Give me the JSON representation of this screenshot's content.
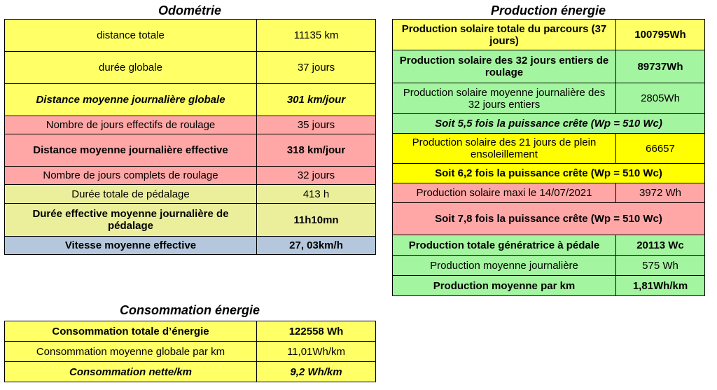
{
  "odometrie": {
    "title": "Odométrie",
    "rows": [
      {
        "label": "distance totale",
        "value": "11135 km"
      },
      {
        "label": "durée globale",
        "value": "37 jours"
      },
      {
        "label": "Distance moyenne journalière globale",
        "value": "301 km/jour"
      },
      {
        "label": "Nombre de jours effectifs  de roulage",
        "value": "35 jours"
      },
      {
        "label": "Distance moyenne journalière effective",
        "value": "318 km/jour"
      },
      {
        "label": "Nombre de jours complets de roulage",
        "value": "32 jours"
      },
      {
        "label": "Durée totale de pédalage",
        "value": "413 h"
      },
      {
        "label": "Durée effective moyenne journalière de pédalage",
        "value": "11h10mn"
      },
      {
        "label": "Vitesse moyenne effective",
        "value": "27, 03km/h"
      }
    ]
  },
  "production": {
    "title": "Production énergie",
    "rows": [
      {
        "label": "Production solaire totale du parcours (37 jours)",
        "value": "100795Wh"
      },
      {
        "label": "Production solaire des 32 jours entiers de roulage",
        "value": "89737Wh"
      },
      {
        "label": "Production solaire moyenne journalière des 32 jours entiers",
        "value": "2805Wh"
      },
      {
        "label": "Soit 5,5 fois la puissance crête (Wp = 510 Wc)"
      },
      {
        "label": "Production solaire  des 21 jours de plein ensoleillement",
        "value": "66657"
      },
      {
        "label": "Soit 6,2 fois la puissance crête (Wp = 510 Wc)"
      },
      {
        "label": "Production solaire maxi le 14/07/2021",
        "value": "3972 Wh"
      },
      {
        "label": "Soit 7,8 fois la puissance crête (Wp = 510 Wc)"
      },
      {
        "label": "Production totale génératrice à pédale",
        "value": "20113 Wc"
      },
      {
        "label": "Production moyenne journalière",
        "value": "575 Wh"
      },
      {
        "label": "Production moyenne  par km",
        "value": "1,81Wh/km"
      }
    ]
  },
  "consommation": {
    "title": "Consommation énergie",
    "rows": [
      {
        "label": "Consommation totale d’énergie",
        "value": "122558 Wh"
      },
      {
        "label": "Consommation moyenne globale par km",
        "value": "11,01Wh/km"
      },
      {
        "label": "Consommation nette/km",
        "value": "9,2 Wh/km"
      }
    ]
  }
}
